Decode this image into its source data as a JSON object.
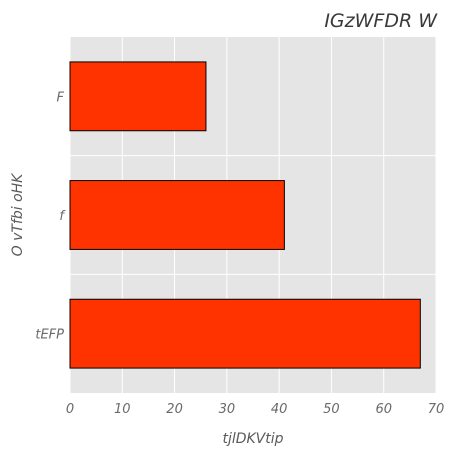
{
  "chart_data": {
    "type": "bar",
    "orientation": "horizontal",
    "title": "IGzWFDR W",
    "xlabel": "tjlDKVtip",
    "ylabel": "O vTfbi oHK",
    "categories": [
      "tEFP",
      "f",
      "F"
    ],
    "values": [
      67,
      41,
      26
    ],
    "xlim": [
      0,
      70
    ],
    "xticks": [
      0,
      10,
      20,
      30,
      40,
      50,
      60,
      70
    ],
    "grid": true,
    "colors": {
      "bar": "#ff3300",
      "bar_edge": "#000000",
      "plot_background": "#e5e5e5",
      "grid": "#ffffff"
    }
  }
}
